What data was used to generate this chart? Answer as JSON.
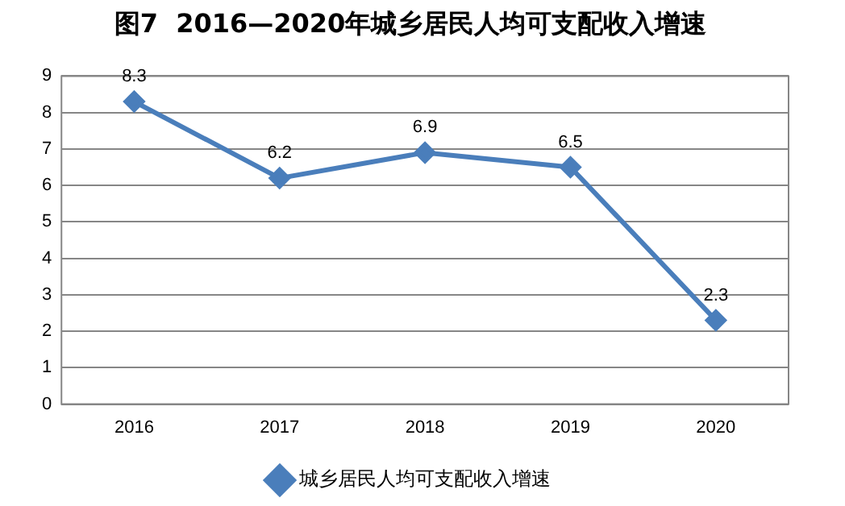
{
  "chart_data": {
    "type": "line",
    "title": "图7  2016—2020年城乡居民人均可支配收入增速",
    "categories": [
      "2016",
      "2017",
      "2018",
      "2019",
      "2020"
    ],
    "series": [
      {
        "name": "城乡居民人均可支配收入增速",
        "color": "#4a7ebb",
        "values": [
          8.3,
          6.2,
          6.9,
          6.5,
          2.3
        ]
      }
    ],
    "ylim": [
      0,
      9
    ],
    "yticks": [
      0,
      1,
      2,
      3,
      4,
      5,
      6,
      7,
      8,
      9
    ],
    "grid": "y",
    "legend": "bottom",
    "marker": "diamond",
    "line_style": "solid",
    "data_labels": true
  }
}
